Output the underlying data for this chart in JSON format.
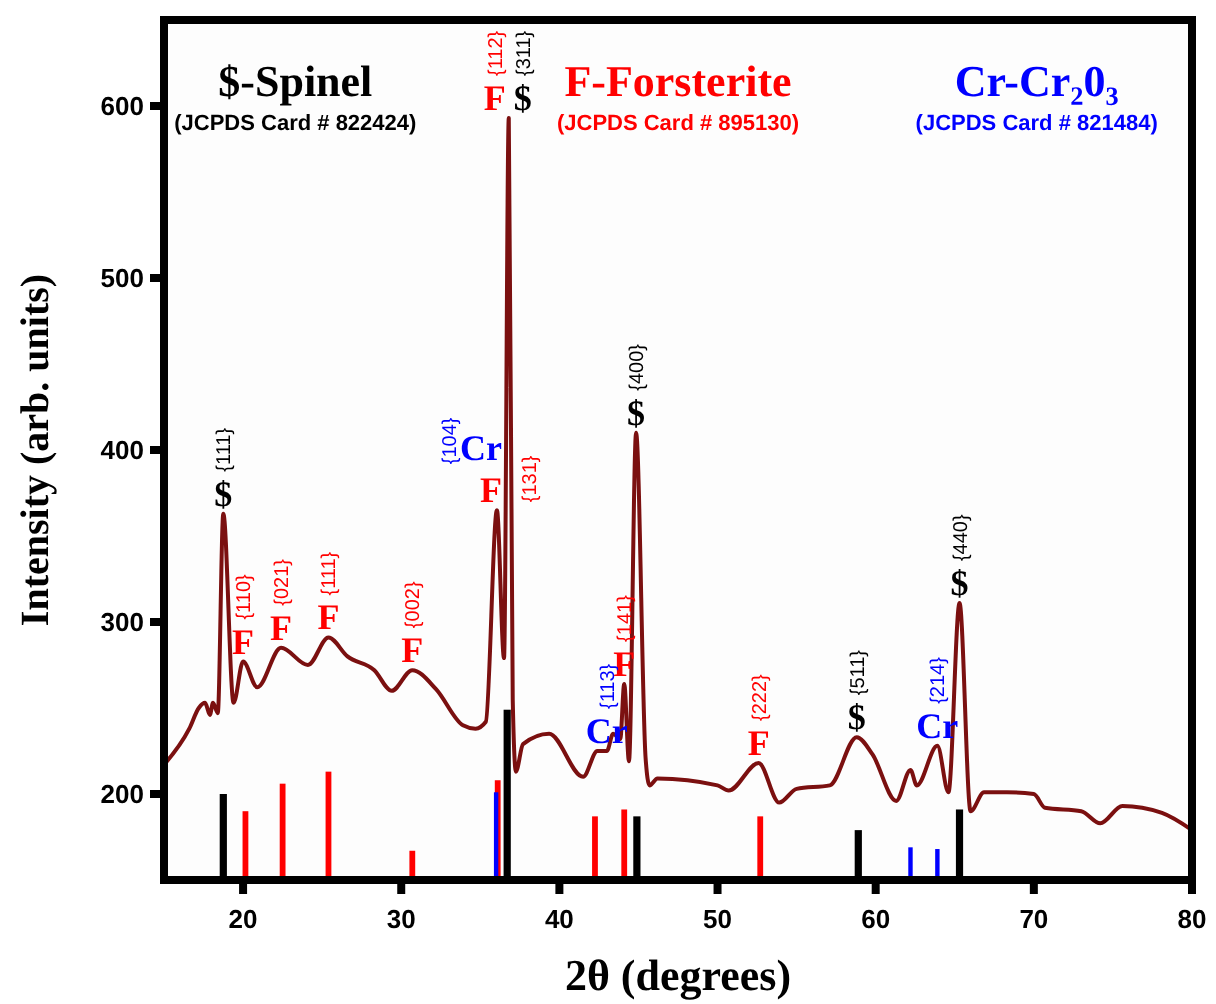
{
  "chart_data": {
    "type": "line",
    "xlabel": "2θ (degrees)",
    "ylabel": "Intensity (arb. units)",
    "xlim": [
      15,
      80
    ],
    "xticks": [
      20,
      30,
      40,
      50,
      60,
      70,
      80
    ],
    "ylim": [
      150,
      650
    ],
    "yticks": [
      200,
      300,
      400,
      500,
      600
    ],
    "grid": false,
    "legend": "top",
    "line_style": "solid",
    "series": [
      {
        "color": "#7b1010",
        "x": [
          15,
          16.6,
          17.2,
          17.6,
          17.9,
          18.1,
          18.4,
          18.75,
          19.4,
          20.0,
          20.9,
          22.4,
          24.1,
          25.4,
          26.6,
          28.3,
          29.4,
          30.7,
          32.2,
          33.9,
          34.7,
          35.35,
          36.05,
          36.5,
          36.8,
          37.05,
          37.25,
          37.7,
          39.35,
          41.5,
          42.4,
          43.0,
          43.4,
          43.85,
          44.1,
          44.4,
          44.85,
          45.45,
          45.7,
          46.2,
          50.0,
          50.7,
          52.6,
          53.9,
          55.0,
          57.1,
          58.8,
          59.8,
          61.3,
          62.2,
          62.6,
          63.9,
          64.6,
          65.3,
          66.0,
          66.85,
          68.3,
          70.0,
          70.7,
          73.0,
          74.2,
          75.6,
          78.1,
          80
        ],
        "values": [
          217,
          238,
          250,
          253,
          246,
          253,
          247,
          363,
          253,
          277,
          262,
          285,
          275,
          291,
          280,
          272,
          260,
          272,
          261,
          240,
          238,
          242,
          365,
          279,
          593,
          255,
          213,
          229,
          235,
          210,
          225,
          225,
          235,
          232,
          264,
          219,
          410,
          221,
          205,
          209,
          205,
          202,
          218,
          195,
          203,
          205,
          233,
          223,
          196,
          214,
          205,
          228,
          201,
          311,
          190,
          201,
          201,
          200,
          192,
          190,
          183,
          193,
          189,
          179
        ]
      },
      {
        "type": "bar",
        "name": "$-Spinel",
        "color": "#000000",
        "x": [
          18.75,
          36.7,
          44.9,
          58.9,
          65.3
        ],
        "values": [
          200,
          249,
          187,
          179,
          191
        ]
      },
      {
        "type": "bar",
        "name": "F-Forsterite",
        "color": "#ff0000",
        "x": [
          20.15,
          22.5,
          25.4,
          30.7,
          36.1,
          42.25,
          44.1,
          52.7
        ],
        "values": [
          190,
          206,
          213,
          167,
          208,
          187,
          191,
          187
        ]
      },
      {
        "type": "bar",
        "name": "Cr-Cr₂0₃",
        "color": "#0000ff",
        "x": [
          36.0,
          62.2,
          63.9
        ],
        "values": [
          201,
          169,
          168
        ]
      }
    ],
    "annotations": [
      "(JCPDS Card # 822424)",
      "(JCPDS Card # 895130)",
      "(JCPDS Card # 821484)",
      {
        "text": "$",
        "x": 18.75,
        "y": 363
      },
      {
        "text": "{111}",
        "x": 18.75,
        "y": 363
      },
      {
        "text": "F",
        "x": 36.8,
        "y": 593
      },
      {
        "text": "{112}",
        "x": 36.8,
        "y": 593
      },
      {
        "text": "$",
        "x": 36.8,
        "y": 593
      },
      {
        "text": "{311}",
        "x": 36.8,
        "y": 593
      },
      {
        "text": "$",
        "x": 44.85,
        "y": 410
      },
      {
        "text": "{400}",
        "x": 44.85,
        "y": 410
      },
      {
        "text": "$",
        "x": 58.8,
        "y": 233
      },
      {
        "text": "{511}",
        "x": 58.8,
        "y": 233
      },
      {
        "text": "$",
        "x": 65.3,
        "y": 311
      },
      {
        "text": "{440}",
        "x": 65.3,
        "y": 311
      },
      {
        "text": "F",
        "x": 20.0,
        "y": 277
      },
      {
        "text": "{110}",
        "x": 20.0,
        "y": 277
      },
      {
        "text": "F",
        "x": 22.4,
        "y": 285
      },
      {
        "text": "{021}",
        "x": 22.4,
        "y": 285
      },
      {
        "text": "F",
        "x": 25.4,
        "y": 291
      },
      {
        "text": "{111}",
        "x": 25.4,
        "y": 291
      },
      {
        "text": "F",
        "x": 30.7,
        "y": 272
      },
      {
        "text": "{002}",
        "x": 30.7,
        "y": 272
      },
      {
        "text": "F",
        "x": 44.1,
        "y": 264
      },
      {
        "text": "{141}",
        "x": 44.1,
        "y": 264
      },
      {
        "text": "F",
        "x": 52.6,
        "y": 218
      },
      {
        "text": "{222}",
        "x": 52.6,
        "y": 218
      },
      {
        "text": "F",
        "x": 36.05,
        "y": 365
      },
      {
        "text": "{131}",
        "x": 36.05,
        "y": 365
      },
      {
        "text": "Cr",
        "x": 36.05,
        "y": 365
      },
      {
        "text": "{104}",
        "x": 36.05,
        "y": 365
      },
      {
        "text": "Cr",
        "x": 43.0,
        "y": 225
      },
      {
        "text": "{113}",
        "x": 43.0,
        "y": 225
      },
      {
        "text": "Cr",
        "x": 63.9,
        "y": 228
      },
      {
        "text": "{214}",
        "x": 63.9,
        "y": 228
      }
    ]
  }
}
